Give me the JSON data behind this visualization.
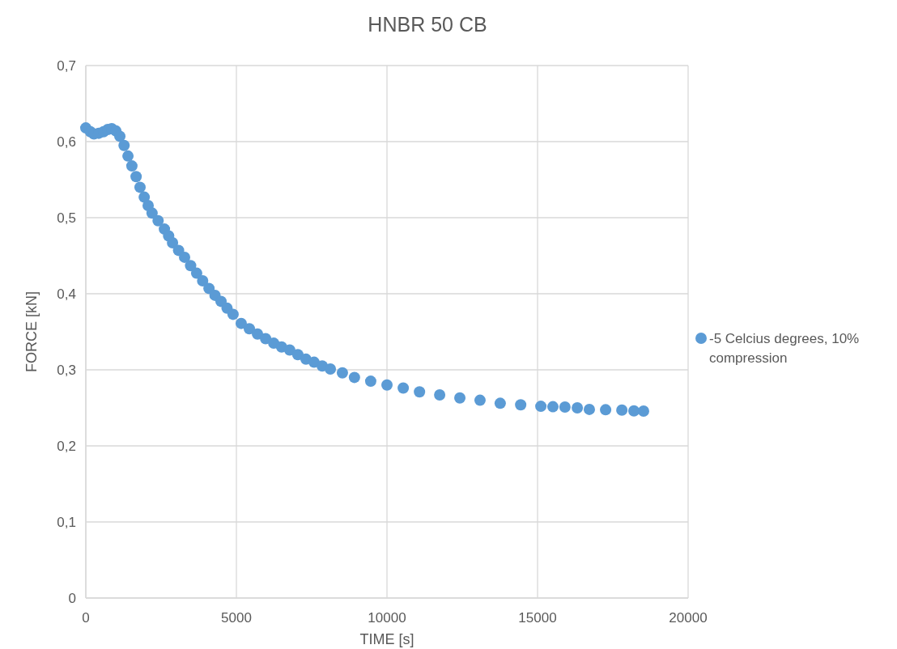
{
  "chart_data": {
    "type": "scatter",
    "title": "HNBR 50 CB",
    "xlabel": "TIME [s]",
    "ylabel": "FORCE [kN]",
    "xlim": [
      0,
      20000
    ],
    "xticks": [
      0,
      5000,
      10000,
      15000,
      20000
    ],
    "ylim": [
      0,
      0.7
    ],
    "yticks": [
      {
        "value": 0,
        "label": "0"
      },
      {
        "value": 0.1,
        "label": "0,1"
      },
      {
        "value": 0.2,
        "label": "0,2"
      },
      {
        "value": 0.3,
        "label": "0,3"
      },
      {
        "value": 0.4,
        "label": "0,4"
      },
      {
        "value": 0.5,
        "label": "0,5"
      },
      {
        "value": 0.6,
        "label": "0,6"
      },
      {
        "value": 0.7,
        "label": "0,7"
      }
    ],
    "grid": true,
    "legend": "right",
    "marker": "circle",
    "series": [
      {
        "name": "-5 Celcius degrees, 10% compression",
        "color": "#5b9bd5",
        "x": [
          0,
          150,
          270,
          430,
          590,
          730,
          860,
          1000,
          1130,
          1270,
          1400,
          1530,
          1670,
          1800,
          1940,
          2070,
          2200,
          2400,
          2610,
          2750,
          2880,
          3080,
          3280,
          3480,
          3680,
          3880,
          4090,
          4290,
          4490,
          4690,
          4890,
          5160,
          5430,
          5700,
          5970,
          6240,
          6500,
          6770,
          7040,
          7310,
          7580,
          7850,
          8120,
          8520,
          8920,
          9460,
          10000,
          10540,
          11080,
          11750,
          12420,
          13090,
          13760,
          14440,
          15110,
          15510,
          15910,
          16320,
          16720,
          17260,
          17800,
          18200,
          18520
        ],
        "values": [
          0.618,
          0.613,
          0.61,
          0.611,
          0.613,
          0.616,
          0.617,
          0.614,
          0.607,
          0.595,
          0.581,
          0.568,
          0.554,
          0.54,
          0.527,
          0.516,
          0.506,
          0.496,
          0.485,
          0.476,
          0.467,
          0.457,
          0.448,
          0.437,
          0.427,
          0.417,
          0.407,
          0.398,
          0.39,
          0.381,
          0.373,
          0.361,
          0.354,
          0.347,
          0.341,
          0.335,
          0.33,
          0.326,
          0.32,
          0.314,
          0.31,
          0.305,
          0.301,
          0.296,
          0.29,
          0.285,
          0.28,
          0.276,
          0.271,
          0.267,
          0.263,
          0.26,
          0.256,
          0.254,
          0.252,
          0.2515,
          0.251,
          0.25,
          0.248,
          0.2475,
          0.247,
          0.246,
          0.2457
        ]
      }
    ]
  }
}
